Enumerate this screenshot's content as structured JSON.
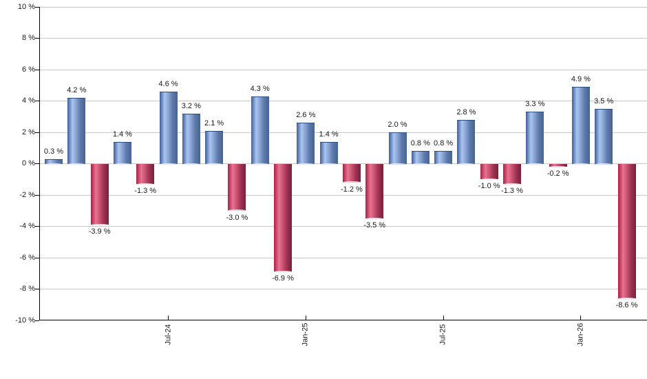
{
  "page": {
    "background": "#ffffff"
  },
  "chart_data": {
    "type": "bar",
    "title": "",
    "unit": "%",
    "values": [
      0.3,
      4.2,
      -3.9,
      1.4,
      -1.3,
      4.6,
      3.2,
      2.1,
      -3.0,
      4.3,
      -6.9,
      2.6,
      1.4,
      -1.2,
      -3.5,
      2.0,
      0.8,
      0.8,
      2.8,
      -1.0,
      -1.3,
      3.3,
      -0.2,
      4.9,
      3.5,
      -8.6
    ],
    "value_label_decimals": 1,
    "value_label_suffix": " %",
    "x_ticks": [
      {
        "bar_index": 5,
        "label": "Jul-24"
      },
      {
        "bar_index": 11,
        "label": "Jan-25"
      },
      {
        "bar_index": 17,
        "label": "Jul-25"
      },
      {
        "bar_index": 23,
        "label": "Jan-26"
      }
    ],
    "y_ticks": [
      10,
      8,
      6,
      4,
      2,
      0,
      -2,
      -4,
      -6,
      -8,
      -10
    ],
    "y_tick_labels": [
      "10 %",
      "8 %",
      "6 %",
      "4 %",
      "2 %",
      "0 %",
      "-2 %",
      "-4 %",
      "-6 %",
      "-8 %",
      "-10 %"
    ],
    "ylim": [
      -10,
      10
    ],
    "grid": true,
    "legend": null,
    "colors": {
      "positive_bar": "#6b8ec7",
      "positive_gradient": [
        "#3f5e99",
        "#a9c5f0",
        "#8fa9d6",
        "#5c79ab",
        "#47648f"
      ],
      "negative_bar": "#c44266",
      "negative_gradient": [
        "#aa1f44",
        "#e87392",
        "#d05a77",
        "#a03254",
        "#78203a"
      ],
      "gridline": "#c9c9c9",
      "axis": "#000000",
      "label_text": "#1a1a1a"
    }
  }
}
